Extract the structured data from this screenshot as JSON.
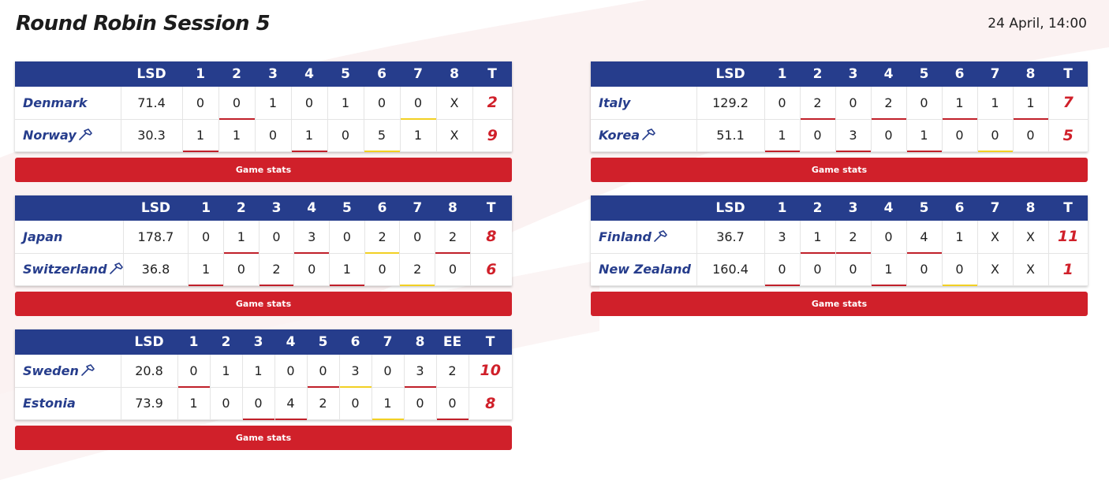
{
  "title": "Round Robin Session 5",
  "datetime": "24 April, 14:00",
  "games": [
    {
      "headers": [
        "LSD",
        "1",
        "2",
        "3",
        "4",
        "5",
        "6",
        "7",
        "8",
        "T"
      ],
      "button": "Game stats",
      "teams": [
        {
          "name": "Denmark",
          "hammer": false,
          "lsd": "71.4",
          "ends": [
            "0",
            "0",
            "1",
            "0",
            "1",
            "0",
            "0",
            "X"
          ],
          "total": "2"
        },
        {
          "name": "Norway",
          "hammer": true,
          "lsd": "30.3",
          "ends": [
            "1",
            "1",
            "0",
            "1",
            "0",
            "5",
            "1",
            "X"
          ],
          "total": "9"
        }
      ]
    },
    {
      "headers": [
        "LSD",
        "1",
        "2",
        "3",
        "4",
        "5",
        "6",
        "7",
        "8",
        "T"
      ],
      "button": "Game stats",
      "teams": [
        {
          "name": "Italy",
          "hammer": false,
          "lsd": "129.2",
          "ends": [
            "0",
            "2",
            "0",
            "2",
            "0",
            "1",
            "1",
            "1"
          ],
          "total": "7"
        },
        {
          "name": "Korea",
          "hammer": true,
          "lsd": "51.1",
          "ends": [
            "1",
            "0",
            "3",
            "0",
            "1",
            "0",
            "0",
            "0"
          ],
          "total": "5"
        }
      ]
    },
    {
      "headers": [
        "LSD",
        "1",
        "2",
        "3",
        "4",
        "5",
        "6",
        "7",
        "8",
        "T"
      ],
      "button": "Game stats",
      "teams": [
        {
          "name": "Japan",
          "hammer": false,
          "lsd": "178.7",
          "ends": [
            "0",
            "1",
            "0",
            "3",
            "0",
            "2",
            "0",
            "2"
          ],
          "total": "8"
        },
        {
          "name": "Switzerland",
          "hammer": true,
          "lsd": "36.8",
          "ends": [
            "1",
            "0",
            "2",
            "0",
            "1",
            "0",
            "2",
            "0"
          ],
          "total": "6"
        }
      ]
    },
    {
      "headers": [
        "LSD",
        "1",
        "2",
        "3",
        "4",
        "5",
        "6",
        "7",
        "8",
        "T"
      ],
      "button": "Game stats",
      "teams": [
        {
          "name": "Finland",
          "hammer": true,
          "lsd": "36.7",
          "ends": [
            "3",
            "1",
            "2",
            "0",
            "4",
            "1",
            "X",
            "X"
          ],
          "total": "11"
        },
        {
          "name": "New Zealand",
          "hammer": false,
          "lsd": "160.4",
          "ends": [
            "0",
            "0",
            "0",
            "1",
            "0",
            "0",
            "X",
            "X"
          ],
          "total": "1"
        }
      ]
    },
    {
      "headers": [
        "LSD",
        "1",
        "2",
        "3",
        "4",
        "5",
        "6",
        "7",
        "8",
        "EE",
        "T"
      ],
      "button": "Game stats",
      "teams": [
        {
          "name": "Sweden",
          "hammer": true,
          "lsd": "20.8",
          "ends": [
            "0",
            "1",
            "1",
            "0",
            "0",
            "3",
            "0",
            "3",
            "2"
          ],
          "total": "10"
        },
        {
          "name": "Estonia",
          "hammer": false,
          "lsd": "73.9",
          "ends": [
            "1",
            "0",
            "0",
            "4",
            "2",
            "0",
            "1",
            "0",
            "0"
          ],
          "total": "8"
        }
      ]
    }
  ],
  "colors": {
    "header_bg": "#263d8c",
    "team_text": "#263d8c",
    "total_text": "#d0202a",
    "button_bg": "#d0202a",
    "underline_red": "#c0202a",
    "underline_yellow": "#f2d024"
  }
}
